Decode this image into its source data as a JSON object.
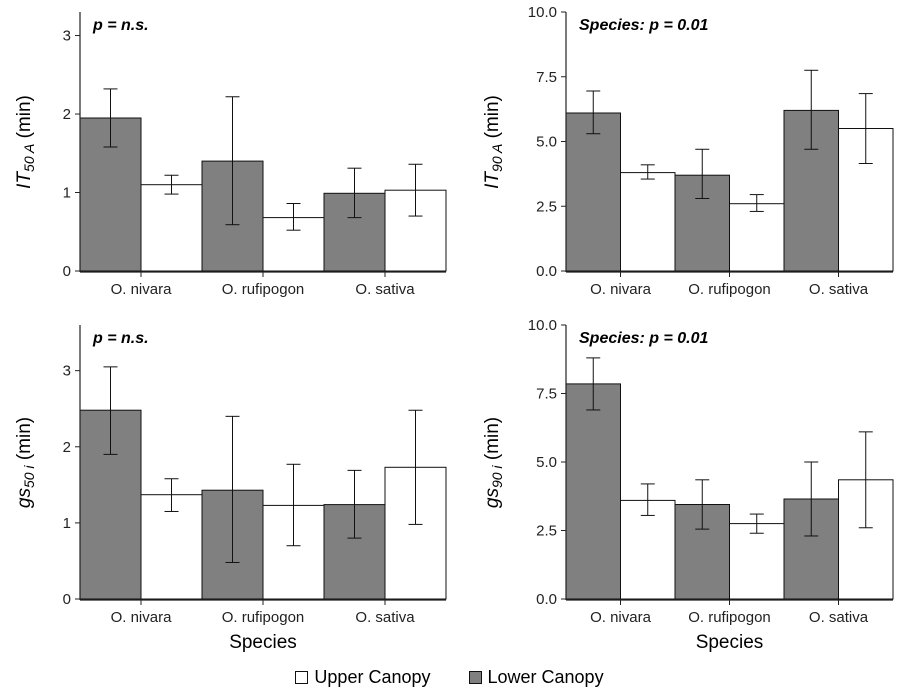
{
  "colors": {
    "lower_canopy": "#808080",
    "upper_canopy": "#ffffff",
    "axis": "#222222"
  },
  "legend": {
    "upper_label": "Upper Canopy",
    "lower_label": "Lower Canopy"
  },
  "chart_data": [
    {
      "type": "bar",
      "annotation": "p = n.s.",
      "ylabel_main": "IT",
      "ylabel_sub": "50 A",
      "ylabel_unit": "(min)",
      "xlabel": "",
      "categories": [
        "O. nivara",
        "O. rufipogon",
        "O. sativa"
      ],
      "ylim": [
        0,
        3.3
      ],
      "yticks": [
        0,
        1,
        2,
        3
      ],
      "tick_labels": [
        "0",
        "1",
        "2",
        "3"
      ],
      "series": [
        {
          "name": "Lower Canopy",
          "values": [
            1.95,
            1.4,
            0.99
          ],
          "err_low": [
            1.58,
            0.59,
            0.68
          ],
          "err_high": [
            2.32,
            2.22,
            1.31
          ]
        },
        {
          "name": "Upper Canopy",
          "values": [
            1.1,
            0.68,
            1.03
          ],
          "err_low": [
            0.98,
            0.52,
            0.7
          ],
          "err_high": [
            1.22,
            0.86,
            1.36
          ]
        }
      ]
    },
    {
      "type": "bar",
      "annotation": "Species: p = 0.01",
      "ylabel_main": "IT",
      "ylabel_sub": "90 A",
      "ylabel_unit": "(min)",
      "xlabel": "",
      "categories": [
        "O. nivara",
        "O. rufipogon",
        "O. sativa"
      ],
      "ylim": [
        0,
        10.0
      ],
      "yticks": [
        0,
        2.5,
        5.0,
        7.5,
        10.0
      ],
      "tick_labels": [
        "0.0",
        "2.5",
        "5.0",
        "7.5",
        "10.0"
      ],
      "series": [
        {
          "name": "Lower Canopy",
          "values": [
            6.1,
            3.7,
            6.2
          ],
          "err_low": [
            5.3,
            2.8,
            4.7
          ],
          "err_high": [
            6.95,
            4.7,
            7.75
          ]
        },
        {
          "name": "Upper Canopy",
          "values": [
            3.8,
            2.6,
            5.5
          ],
          "err_low": [
            3.55,
            2.3,
            4.15
          ],
          "err_high": [
            4.1,
            2.95,
            6.85
          ]
        }
      ]
    },
    {
      "type": "bar",
      "annotation": "p = n.s.",
      "ylabel_main": "gs",
      "ylabel_sub": "50 i",
      "ylabel_unit": "(min)",
      "xlabel": "Species",
      "categories": [
        "O. nivara",
        "O. rufipogon",
        "O. sativa"
      ],
      "ylim": [
        0,
        3.6
      ],
      "yticks": [
        0,
        1,
        2,
        3
      ],
      "tick_labels": [
        "0",
        "1",
        "2",
        "3"
      ],
      "series": [
        {
          "name": "Lower Canopy",
          "values": [
            2.48,
            1.43,
            1.24
          ],
          "err_low": [
            1.9,
            0.48,
            0.8
          ],
          "err_high": [
            3.05,
            2.4,
            1.69
          ]
        },
        {
          "name": "Upper Canopy",
          "values": [
            1.37,
            1.23,
            1.73
          ],
          "err_low": [
            1.15,
            0.7,
            0.98
          ],
          "err_high": [
            1.58,
            1.77,
            2.48
          ]
        }
      ]
    },
    {
      "type": "bar",
      "annotation": "Species: p = 0.01",
      "ylabel_main": "gs",
      "ylabel_sub": "90 i",
      "ylabel_unit": "(min)",
      "xlabel": "Species",
      "categories": [
        "O. nivara",
        "O. rufipogon",
        "O. sativa"
      ],
      "ylim": [
        0,
        10.0
      ],
      "yticks": [
        0,
        2.5,
        5.0,
        7.5,
        10.0
      ],
      "tick_labels": [
        "0.0",
        "2.5",
        "5.0",
        "7.5",
        "10.0"
      ],
      "series": [
        {
          "name": "Lower Canopy",
          "values": [
            7.85,
            3.45,
            3.65
          ],
          "err_low": [
            6.9,
            2.55,
            2.3
          ],
          "err_high": [
            8.8,
            4.35,
            5.0
          ]
        },
        {
          "name": "Upper Canopy",
          "values": [
            3.6,
            2.75,
            4.35
          ],
          "err_low": [
            3.05,
            2.4,
            2.6
          ],
          "err_high": [
            4.2,
            3.1,
            6.1
          ]
        }
      ]
    }
  ]
}
